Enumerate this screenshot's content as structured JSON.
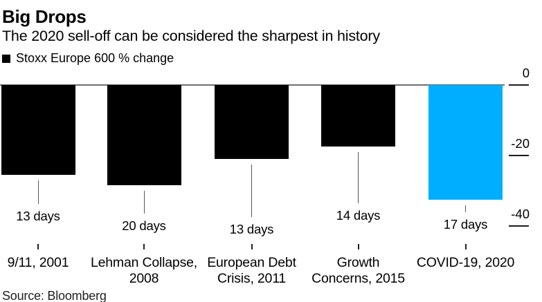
{
  "header": {
    "title": "Big Drops",
    "subtitle": "The 2020 sell-off can be considered the sharpest in history"
  },
  "legend": {
    "label": "Stoxx Europe 600 % change",
    "swatch_color": "#000000"
  },
  "source": {
    "label": "Source: Bloomberg"
  },
  "colors": {
    "bar_default": "#000000",
    "bar_highlight": "#00AEFF",
    "baseline": "#6e6e6e",
    "axis_tick": "#1a1a1a",
    "leader_line": "#555555",
    "category_tick": "#222222",
    "text": "#000000"
  },
  "chart_data": {
    "type": "bar",
    "title": "Big Drops",
    "subtitle": "The 2020 sell-off can be considered the sharpest in history",
    "series_name": "Stoxx Europe 600 % change",
    "unit": "%",
    "categories": [
      "9/11, 2001",
      "Lehman Collapse, 2008",
      "European Debt Crisis, 2011",
      "Growth Concerns, 2015",
      "COVID-19, 2020"
    ],
    "categories_display": [
      [
        "9/11, 2001"
      ],
      [
        "Lehman Collapse,",
        "2008"
      ],
      [
        "European Debt",
        "Crisis, 2011"
      ],
      [
        "Growth",
        "Concerns, 2015"
      ],
      [
        "COVID-19, 2020"
      ]
    ],
    "values": [
      -25.5,
      -28.5,
      -21,
      -17.5,
      -32.5
    ],
    "bar_labels": [
      "13 days",
      "20 days",
      "13 days",
      "14 days",
      "17 days"
    ],
    "highlight_index": 4,
    "yticks": [
      0,
      -20,
      -40
    ],
    "ytick_labels": [
      "0",
      "-20",
      "-40"
    ],
    "ylim": [
      -42,
      0
    ],
    "axis_side": "right",
    "grid": false,
    "legend_position": "top-left"
  }
}
